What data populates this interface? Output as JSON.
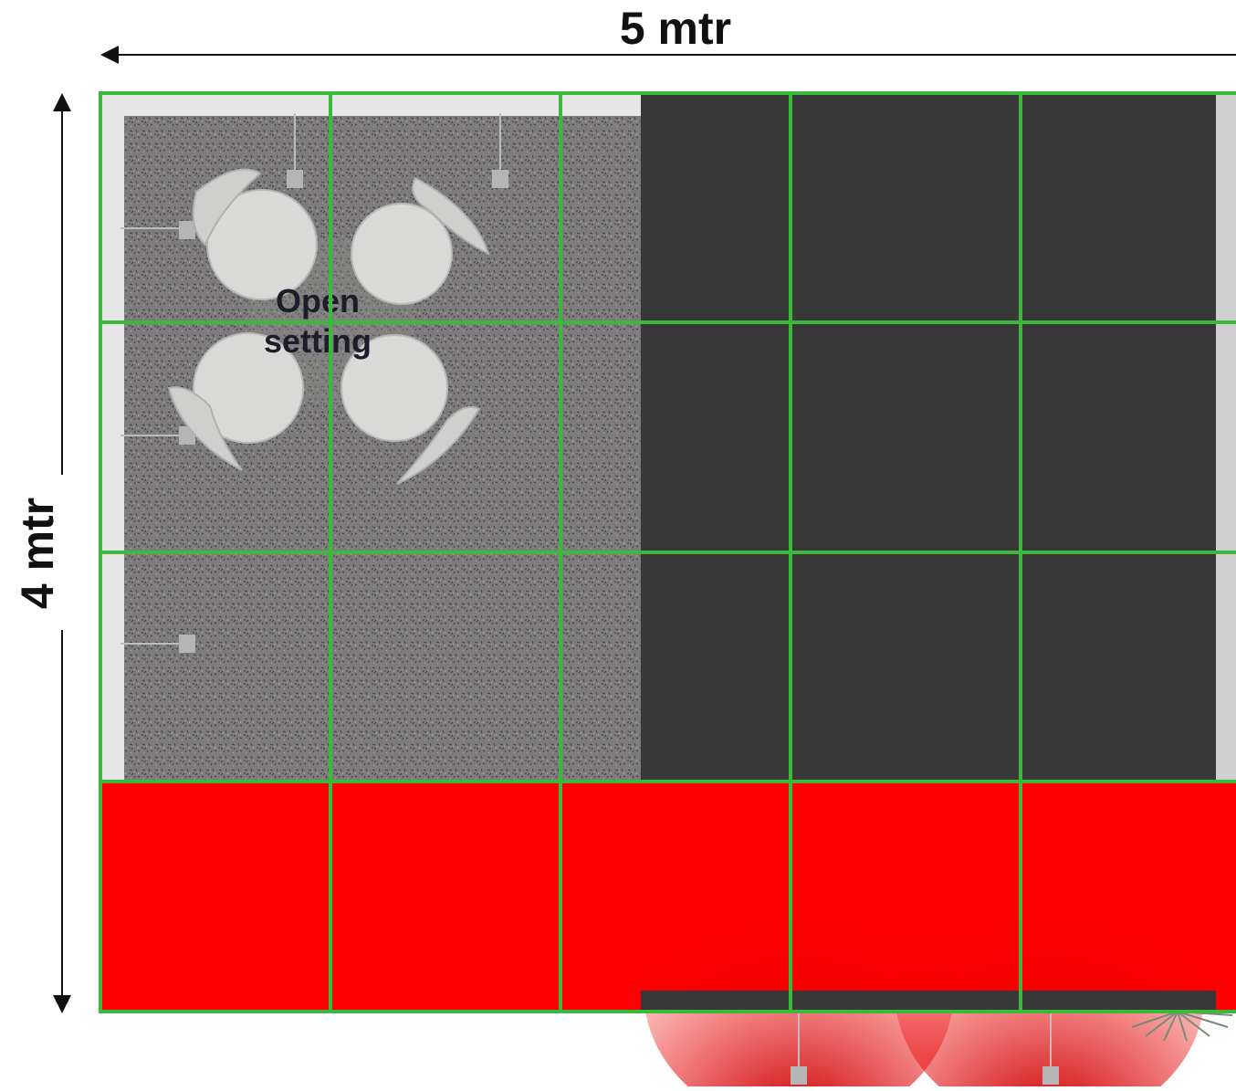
{
  "dimensions": {
    "width_label": "5 mtr",
    "height_label": "4 mtr"
  },
  "zones": {
    "open_setting_line1": "Open",
    "open_setting_line2": "setting"
  },
  "grid": {
    "columns": 5,
    "rows": 4,
    "cell_size_mtr": 1
  },
  "colors": {
    "grid_line": "#3ab93a",
    "counter_red": "#ff0000",
    "dark_panel": "#383838",
    "carpet": "#7d7b7b",
    "chair": "#d9d9d7",
    "light": "#b5b5b5"
  }
}
